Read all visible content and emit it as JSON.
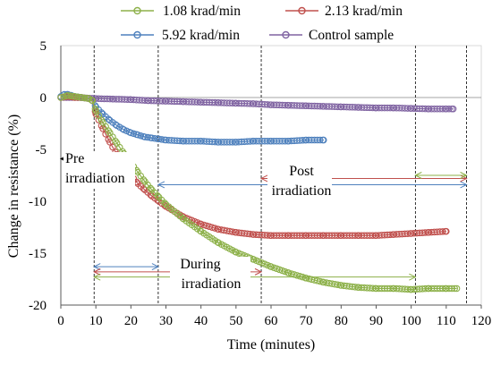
{
  "chart_data": {
    "type": "scatter",
    "xlabel": "Time (minutes)",
    "ylabel": "Change in resistance (%)",
    "xlim": [
      0,
      120
    ],
    "ylim": [
      -20,
      5
    ],
    "xticks": [
      0,
      10,
      20,
      30,
      40,
      50,
      60,
      70,
      80,
      90,
      100,
      110,
      120
    ],
    "yticks": [
      5,
      0,
      -5,
      -10,
      -15,
      -20
    ],
    "grid": false,
    "legend_position": "top",
    "series": [
      {
        "name": "1.08 krad/min",
        "color": "#8db14a",
        "x": [
          0,
          2,
          4,
          6,
          8,
          9,
          10,
          12,
          14,
          16,
          18,
          20,
          22,
          24,
          26,
          28,
          30,
          35,
          40,
          45,
          50,
          55,
          60,
          65,
          70,
          75,
          80,
          85,
          90,
          95,
          100,
          105,
          110,
          113
        ],
        "values": [
          0,
          0.2,
          0.1,
          0,
          -0.1,
          -0.3,
          -1.3,
          -2.4,
          -3.4,
          -4.4,
          -5.4,
          -6.3,
          -7.2,
          -8.1,
          -8.9,
          -9.6,
          -10.3,
          -11.7,
          -12.9,
          -14.0,
          -14.9,
          -15.6,
          -16.3,
          -16.9,
          -17.4,
          -17.8,
          -18.1,
          -18.3,
          -18.4,
          -18.4,
          -18.5,
          -18.4,
          -18.4,
          -18.4
        ]
      },
      {
        "name": "2.13 krad/min",
        "color": "#c0504d",
        "x": [
          0,
          2,
          4,
          6,
          8,
          9,
          10,
          12,
          14,
          16,
          18,
          20,
          22,
          24,
          26,
          28,
          30,
          35,
          40,
          45,
          50,
          55,
          60,
          65,
          70,
          75,
          80,
          85,
          90,
          95,
          100,
          105,
          110
        ],
        "values": [
          0,
          0.1,
          0,
          0,
          -0.1,
          -0.3,
          -1.6,
          -3.0,
          -4.3,
          -5.5,
          -6.6,
          -7.5,
          -8.3,
          -8.9,
          -9.5,
          -10.0,
          -10.5,
          -11.5,
          -12.2,
          -12.7,
          -13.0,
          -13.2,
          -13.3,
          -13.3,
          -13.3,
          -13.3,
          -13.3,
          -13.3,
          -13.3,
          -13.2,
          -13.1,
          -13.0,
          -12.9
        ]
      },
      {
        "name": "5.92 krad/min",
        "color": "#4f81bd",
        "x": [
          0,
          1,
          2,
          3,
          4,
          6,
          8,
          9,
          10,
          12,
          14,
          16,
          18,
          20,
          22,
          24,
          26,
          28,
          30,
          35,
          40,
          45,
          50,
          55,
          60,
          65,
          70,
          75
        ],
        "values": [
          0.1,
          0.3,
          0.3,
          0.2,
          0.1,
          0,
          -0.1,
          -0.3,
          -0.9,
          -1.6,
          -2.2,
          -2.7,
          -3.1,
          -3.4,
          -3.6,
          -3.8,
          -3.9,
          -4.0,
          -4.1,
          -4.2,
          -4.2,
          -4.3,
          -4.3,
          -4.2,
          -4.2,
          -4.2,
          -4.1,
          -4.1
        ]
      },
      {
        "name": "Control sample",
        "color": "#8064a2",
        "x": [
          0,
          5,
          10,
          15,
          20,
          25,
          30,
          35,
          40,
          45,
          50,
          55,
          60,
          65,
          70,
          75,
          80,
          85,
          90,
          95,
          100,
          105,
          110,
          112
        ],
        "values": [
          0,
          0,
          -0.1,
          -0.15,
          -0.2,
          -0.3,
          -0.35,
          -0.4,
          -0.45,
          -0.5,
          -0.55,
          -0.6,
          -0.7,
          -0.75,
          -0.8,
          -0.85,
          -0.9,
          -0.95,
          -1.0,
          -1.0,
          -1.05,
          -1.1,
          -1.1,
          -1.1
        ]
      }
    ],
    "vertical_lines": [
      9.5,
      27.8,
      57.2,
      101.2,
      115.8
    ],
    "arrows": [
      {
        "color": "#000000",
        "from": 9.5,
        "to": 0,
        "y": -5.9
      },
      {
        "color": "#4f81bd",
        "from": 27.8,
        "to": 115.8,
        "y": -8.4
      },
      {
        "color": "#c0504d",
        "from": 57.2,
        "to": 115.8,
        "y": -7.8
      },
      {
        "color": "#8db14a",
        "from": 101.2,
        "to": 115.8,
        "y": -7.5
      },
      {
        "color": "#4f81bd",
        "from": 9.5,
        "to": 27.8,
        "y": -16.3
      },
      {
        "color": "#c0504d",
        "from": 9.5,
        "to": 57.2,
        "y": -16.8
      },
      {
        "color": "#8db14a",
        "from": 9.5,
        "to": 101.2,
        "y": -17.3
      }
    ],
    "annotations": {
      "pre_line1": "Pre",
      "pre_line2": "irradiation",
      "post_line1": "Post",
      "post_line2": "irradiation",
      "during_line1": "During",
      "during_line2": "irradiation"
    }
  }
}
